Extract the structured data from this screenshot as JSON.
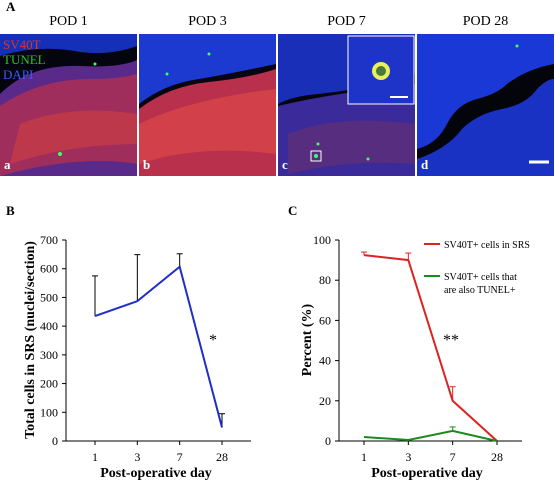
{
  "panel_a": {
    "letter": "A",
    "legend": [
      {
        "text": "SV40T",
        "color": "#e0302a"
      },
      {
        "text": "TUNEL",
        "color": "#27c227"
      },
      {
        "text": "DAPI",
        "color": "#3a5cff"
      }
    ],
    "images": [
      {
        "title": "POD 1",
        "letter": "a"
      },
      {
        "title": "POD 3",
        "letter": "b"
      },
      {
        "title": "POD 7",
        "letter": "c"
      },
      {
        "title": "POD 28",
        "letter": "d"
      }
    ]
  },
  "chart_data": [
    {
      "panel": "B",
      "type": "line",
      "categories": [
        "1",
        "3",
        "7",
        "28"
      ],
      "series": [
        {
          "values": [
            435,
            487,
            607,
            47
          ],
          "error": [
            140,
            162,
            45,
            48
          ],
          "color": "#1f2ec7"
        }
      ],
      "xlabel": "Post-operative day",
      "ylabel": "Total cells in SRS (nuclei/section)",
      "ylim": [
        0,
        700
      ],
      "yticks": [
        "0",
        "100",
        "200",
        "300",
        "400",
        "500",
        "600",
        "700"
      ],
      "annotation": "*",
      "grid": false
    },
    {
      "panel": "C",
      "type": "line",
      "categories": [
        "1",
        "3",
        "7",
        "28"
      ],
      "series": [
        {
          "name": "SV40T+ cells in SRS",
          "values": [
            92.5,
            90,
            20,
            0
          ],
          "error": [
            1.5,
            3.5,
            7,
            0
          ],
          "color": "#dd2222"
        },
        {
          "name": "SV40T+ cells that are also TUNEL+",
          "values": [
            2,
            0.5,
            5,
            0
          ],
          "error": [
            0,
            0,
            2,
            0
          ],
          "color": "#1c8a1c"
        }
      ],
      "xlabel": "Post-operative day",
      "ylabel": "Percent (%)",
      "ylim": [
        0,
        100
      ],
      "yticks": [
        "0",
        "20",
        "40",
        "60",
        "80",
        "100"
      ],
      "annotation": "**",
      "legend_position": "top-right",
      "grid": false
    }
  ]
}
